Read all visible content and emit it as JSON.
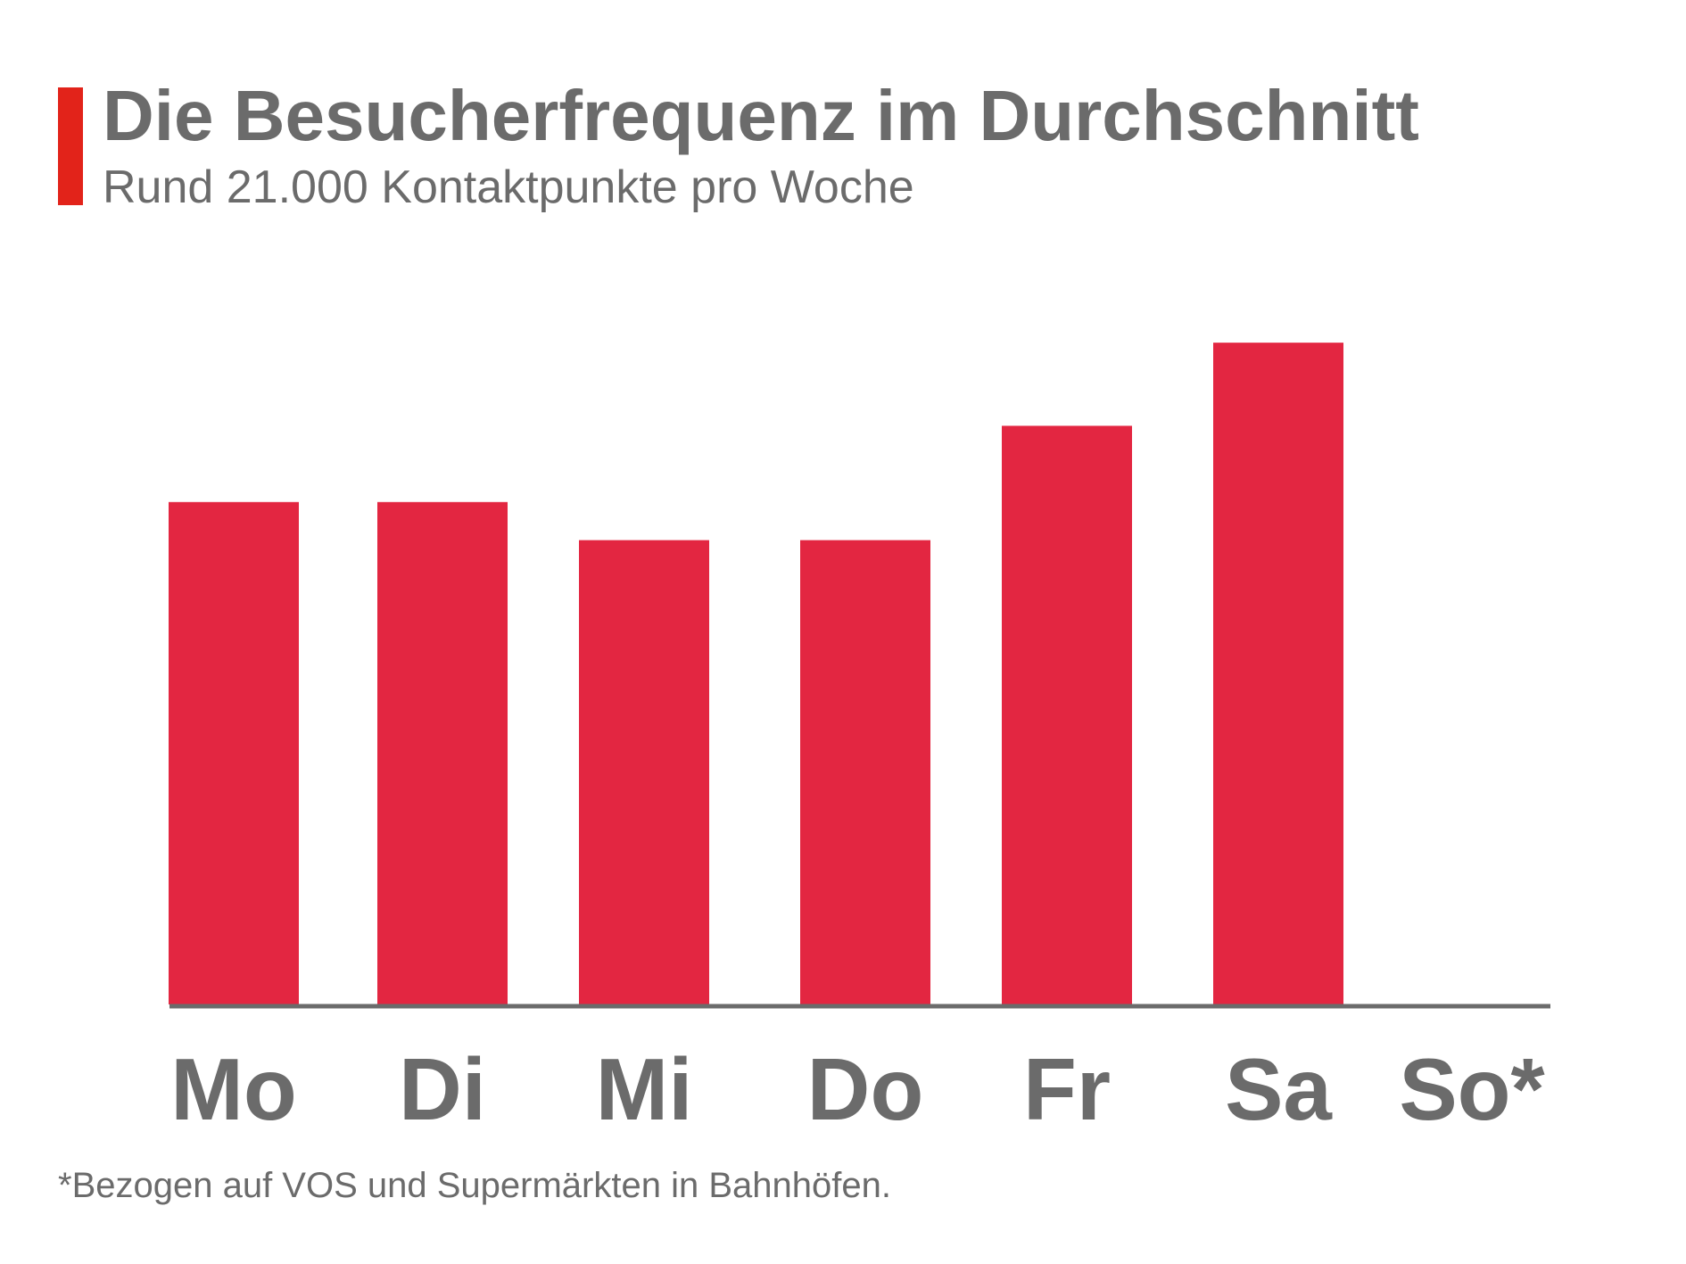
{
  "header": {
    "title": "Die Besucherfrequenz im Durchschnitt",
    "subtitle": "Rund 21.000 Kontaktpunkte pro Woche"
  },
  "footnote": "*Bezogen auf VOS und Supermärkten in Bahnhöfen.",
  "colors": {
    "accent": "#e2231a",
    "bar": "#e32641",
    "text": "#6b6b6b",
    "axis": "#6b6b6b"
  },
  "chart_data": {
    "type": "bar",
    "categories": [
      "Mo",
      "Di",
      "Mi",
      "Do",
      "Fr",
      "Sa",
      "So*"
    ],
    "values": [
      2900,
      2900,
      2680,
      2680,
      3340,
      3820,
      0
    ],
    "ylim": [
      0,
      5000
    ],
    "xlabel": "",
    "ylabel": "",
    "grid": false,
    "legend": "none"
  }
}
